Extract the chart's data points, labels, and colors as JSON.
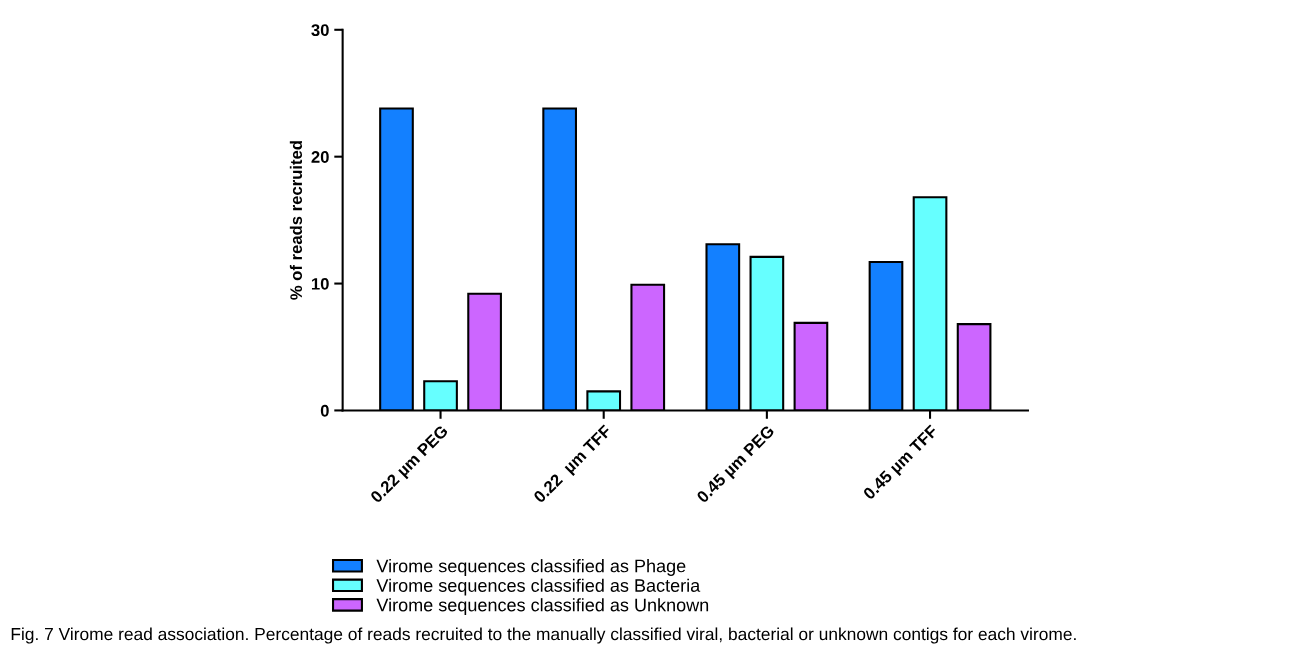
{
  "chart_data": {
    "type": "bar",
    "ylabel": "% of reads recruited",
    "categories": [
      "0.22 µm PEG",
      "0.22  µm TFF",
      "0.45 µm PEG",
      "0.45 µm TFF"
    ],
    "series": [
      {
        "name": "Virome sequences classified as Phage",
        "color": "#1380ff",
        "values": [
          23.8,
          23.8,
          13.1,
          11.7
        ]
      },
      {
        "name": "Virome sequences classified as Bacteria",
        "color": "#66ffff",
        "values": [
          2.3,
          1.5,
          12.1,
          16.8
        ]
      },
      {
        "name": "Virome sequences classified as Unknown",
        "color": "#cc66ff",
        "values": [
          9.2,
          9.9,
          6.9,
          6.8
        ]
      }
    ],
    "ylim": [
      0,
      30
    ],
    "yticks": [
      0,
      10,
      20,
      30
    ],
    "grid": false,
    "legend": "bottom",
    "annotations": [
      "Fig. 7 Virome read association. Percentage of reads recruited to the manually classified viral, bacterial or unknown contigs for each virome."
    ]
  }
}
